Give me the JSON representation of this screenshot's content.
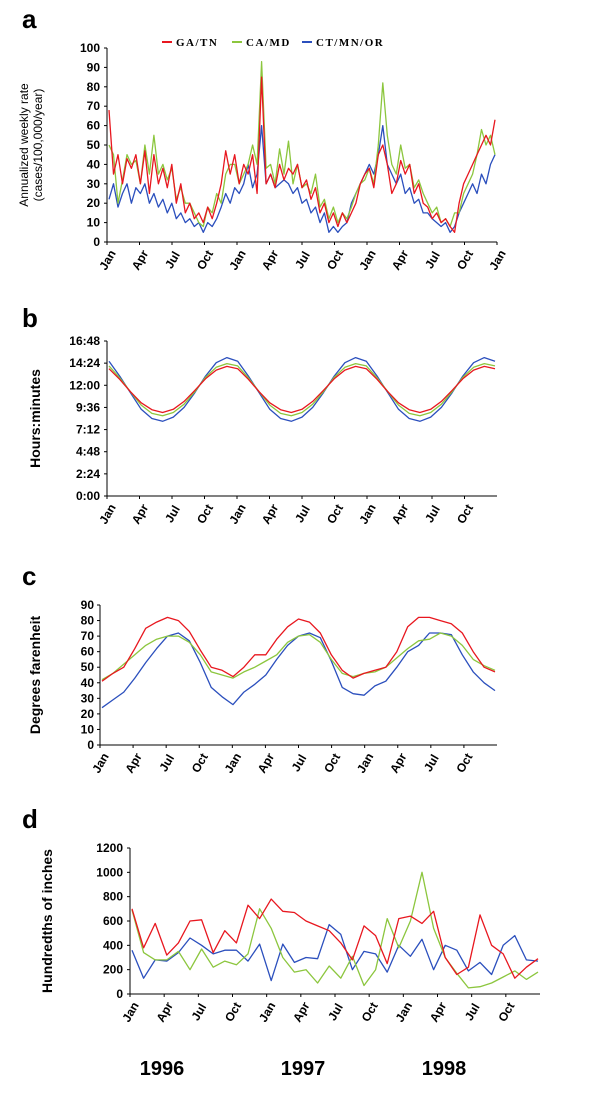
{
  "colors": {
    "GA/TN": "#e8171f",
    "CA/MD": "#8cc63e",
    "CT/MN/OR": "#2b4fbd"
  },
  "panel_letters": [
    "a",
    "b",
    "c",
    "d"
  ],
  "years": [
    "1996",
    "1997",
    "1998"
  ],
  "chart_data": [
    {
      "type": "line",
      "panel": "a",
      "ylabel": [
        "Annualized weekly rate",
        "(cases/100,000/year)"
      ],
      "ylim": [
        0,
        100
      ],
      "yticks": [
        "0",
        "10",
        "20",
        "30",
        "40",
        "50",
        "60",
        "70",
        "80",
        "90",
        "100"
      ],
      "xticks": [
        "Jan",
        "Apr",
        "Jul",
        "Oct",
        "Jan",
        "Apr",
        "Jul",
        "Oct",
        "Jan",
        "Apr",
        "Jul",
        "Oct",
        "Jan"
      ],
      "legend": [
        "GA/TN",
        "CA/MD",
        "CT/MN/OR"
      ],
      "legend_position": "top",
      "series": [
        {
          "name": "GA/TN",
          "values": [
            68,
            35,
            45,
            30,
            43,
            38,
            45,
            30,
            47,
            25,
            45,
            30,
            38,
            28,
            40,
            20,
            30,
            15,
            20,
            12,
            15,
            10,
            18,
            12,
            20,
            30,
            47,
            35,
            45,
            30,
            40,
            35,
            45,
            25,
            85,
            30,
            35,
            28,
            40,
            32,
            38,
            35,
            40,
            28,
            32,
            22,
            28,
            15,
            20,
            10,
            15,
            8,
            15,
            10,
            15,
            20,
            30,
            35,
            38,
            28,
            45,
            50,
            40,
            25,
            30,
            42,
            35,
            40,
            25,
            30,
            20,
            18,
            12,
            15,
            10,
            12,
            8,
            5,
            20,
            30,
            35,
            40,
            45,
            50,
            55,
            50,
            63
          ]
        },
        {
          "name": "CA/MD",
          "values": [
            50,
            45,
            20,
            32,
            45,
            40,
            42,
            30,
            50,
            35,
            55,
            35,
            40,
            32,
            38,
            22,
            28,
            20,
            20,
            15,
            10,
            8,
            18,
            15,
            25,
            20,
            35,
            40,
            40,
            30,
            35,
            40,
            50,
            40,
            93,
            38,
            40,
            30,
            48,
            35,
            52,
            30,
            40,
            28,
            30,
            25,
            35,
            18,
            22,
            12,
            18,
            10,
            15,
            12,
            18,
            25,
            30,
            32,
            38,
            30,
            50,
            82,
            55,
            40,
            35,
            50,
            38,
            40,
            28,
            32,
            25,
            20,
            15,
            18,
            10,
            12,
            8,
            15,
            15,
            25,
            30,
            35,
            45,
            58,
            50,
            55,
            45
          ]
        },
        {
          "name": "CT/MN/OR",
          "values": [
            22,
            30,
            18,
            25,
            30,
            20,
            28,
            25,
            30,
            20,
            25,
            18,
            22,
            15,
            20,
            12,
            15,
            10,
            12,
            8,
            10,
            5,
            10,
            8,
            12,
            18,
            25,
            20,
            28,
            25,
            30,
            40,
            28,
            35,
            60,
            30,
            35,
            28,
            30,
            32,
            30,
            25,
            28,
            20,
            22,
            15,
            18,
            10,
            15,
            5,
            8,
            5,
            8,
            10,
            20,
            25,
            30,
            35,
            40,
            35,
            45,
            60,
            40,
            35,
            30,
            35,
            25,
            28,
            20,
            22,
            15,
            15,
            12,
            10,
            8,
            10,
            5,
            8,
            15,
            20,
            25,
            30,
            25,
            35,
            30,
            40,
            45
          ]
        }
      ]
    },
    {
      "type": "line",
      "panel": "b",
      "ylabel": "Hours:minutes",
      "ylim": [
        0,
        16.8
      ],
      "yticks": [
        "0:00",
        "2:24",
        "4:48",
        "7:12",
        "9:36",
        "12:00",
        "14:24",
        "16:48"
      ],
      "xticks": [
        "Jan",
        "Apr",
        "Jul",
        "Oct",
        "Jan",
        "Apr",
        "Jul",
        "Oct",
        "Jan",
        "Apr",
        "Jul",
        "Oct"
      ],
      "series": [
        {
          "name": "GA/TN",
          "values": [
            13.8,
            12.65,
            11.3,
            10.1,
            9.35,
            9.05,
            9.4,
            10.25,
            11.45,
            12.7,
            13.65,
            14.05,
            13.8,
            12.65,
            11.3,
            10.1,
            9.35,
            9.05,
            9.4,
            10.25,
            11.45,
            12.7,
            13.65,
            14.05,
            13.8,
            12.65,
            11.3,
            10.1,
            9.35,
            9.05,
            9.4,
            10.25,
            11.45,
            12.7,
            13.65,
            14.05,
            13.8
          ]
        },
        {
          "name": "CA/MD",
          "values": [
            14.1,
            12.8,
            11.3,
            9.85,
            8.95,
            8.7,
            9.05,
            9.95,
            11.3,
            12.85,
            13.95,
            14.35,
            14.1,
            12.8,
            11.3,
            9.85,
            8.95,
            8.7,
            9.05,
            9.95,
            11.3,
            12.85,
            13.95,
            14.35,
            14.1,
            12.8,
            11.3,
            9.85,
            8.95,
            8.7,
            9.05,
            9.95,
            11.3,
            12.85,
            13.95,
            14.35,
            14.1
          ]
        },
        {
          "name": "CT/MN/OR",
          "values": [
            14.6,
            13.0,
            11.2,
            9.4,
            8.4,
            8.1,
            8.55,
            9.6,
            11.2,
            13.0,
            14.45,
            15.0,
            14.6,
            13.0,
            11.2,
            9.4,
            8.4,
            8.1,
            8.55,
            9.6,
            11.2,
            13.0,
            14.45,
            15.0,
            14.6,
            13.0,
            11.2,
            9.4,
            8.4,
            8.1,
            8.55,
            9.6,
            11.2,
            13.0,
            14.45,
            15.0,
            14.6
          ]
        }
      ]
    },
    {
      "type": "line",
      "panel": "c",
      "ylabel": "Degrees farenheit",
      "ylim": [
        0,
        90
      ],
      "yticks": [
        "0",
        "10",
        "20",
        "30",
        "40",
        "50",
        "60",
        "70",
        "80",
        "90"
      ],
      "xticks": [
        "Jan",
        "Apr",
        "Jul",
        "Oct",
        "Jan",
        "Apr",
        "Jul",
        "Oct",
        "Jan",
        "Apr",
        "Jul",
        "Oct"
      ],
      "series": [
        {
          "name": "GA/TN",
          "values": [
            41,
            46,
            50,
            62,
            75,
            79,
            82,
            80,
            73,
            61,
            50,
            48,
            44,
            50,
            58,
            58,
            68,
            76,
            81,
            79,
            72,
            58,
            48,
            43,
            46,
            48,
            50,
            60,
            76,
            82,
            82,
            80,
            78,
            72,
            60,
            50,
            47
          ]
        },
        {
          "name": "CA/MD",
          "values": [
            42,
            46,
            52,
            58,
            64,
            68,
            70,
            70,
            66,
            58,
            47,
            45,
            43,
            47,
            50,
            54,
            58,
            66,
            70,
            71,
            66,
            55,
            46,
            44,
            46,
            47,
            50,
            56,
            62,
            67,
            68,
            72,
            70,
            64,
            55,
            51,
            48
          ]
        },
        {
          "name": "CT/MN/OR",
          "values": [
            24,
            29,
            34,
            43,
            53,
            62,
            70,
            72,
            67,
            53,
            37,
            31,
            26,
            34,
            39,
            45,
            55,
            64,
            70,
            72,
            69,
            54,
            37,
            33,
            32,
            38,
            41,
            50,
            60,
            64,
            72,
            72,
            71,
            58,
            47,
            40,
            35
          ]
        }
      ]
    },
    {
      "type": "line",
      "panel": "d",
      "ylabel": "Hundredths of inches",
      "ylim": [
        0,
        1200
      ],
      "yticks": [
        "0",
        "200",
        "400",
        "600",
        "800",
        "1000",
        "1200"
      ],
      "xticks": [
        "Jan",
        "Apr",
        "Jul",
        "Oct",
        "Jan",
        "Apr",
        "Jul",
        "Oct",
        "Jan",
        "Apr",
        "Jul",
        "Oct"
      ],
      "series": [
        {
          "name": "GA/TN",
          "values": [
            700,
            380,
            580,
            320,
            420,
            600,
            610,
            340,
            520,
            420,
            730,
            620,
            780,
            680,
            670,
            600,
            560,
            520,
            420,
            280,
            560,
            480,
            250,
            620,
            640,
            580,
            680,
            300,
            160,
            220,
            650,
            400,
            330,
            130,
            220,
            290
          ]
        },
        {
          "name": "CA/MD",
          "values": [
            690,
            340,
            280,
            280,
            350,
            200,
            370,
            220,
            270,
            240,
            330,
            700,
            540,
            300,
            180,
            200,
            90,
            230,
            130,
            310,
            70,
            200,
            620,
            380,
            600,
            1000,
            540,
            300,
            170,
            50,
            60,
            90,
            140,
            190,
            120,
            180
          ]
        },
        {
          "name": "CT/MN/OR",
          "values": [
            360,
            130,
            280,
            270,
            340,
            460,
            400,
            330,
            360,
            360,
            270,
            410,
            110,
            410,
            260,
            300,
            290,
            570,
            490,
            200,
            350,
            330,
            180,
            400,
            310,
            450,
            200,
            400,
            360,
            190,
            260,
            160,
            400,
            480,
            280,
            270
          ]
        }
      ]
    }
  ]
}
